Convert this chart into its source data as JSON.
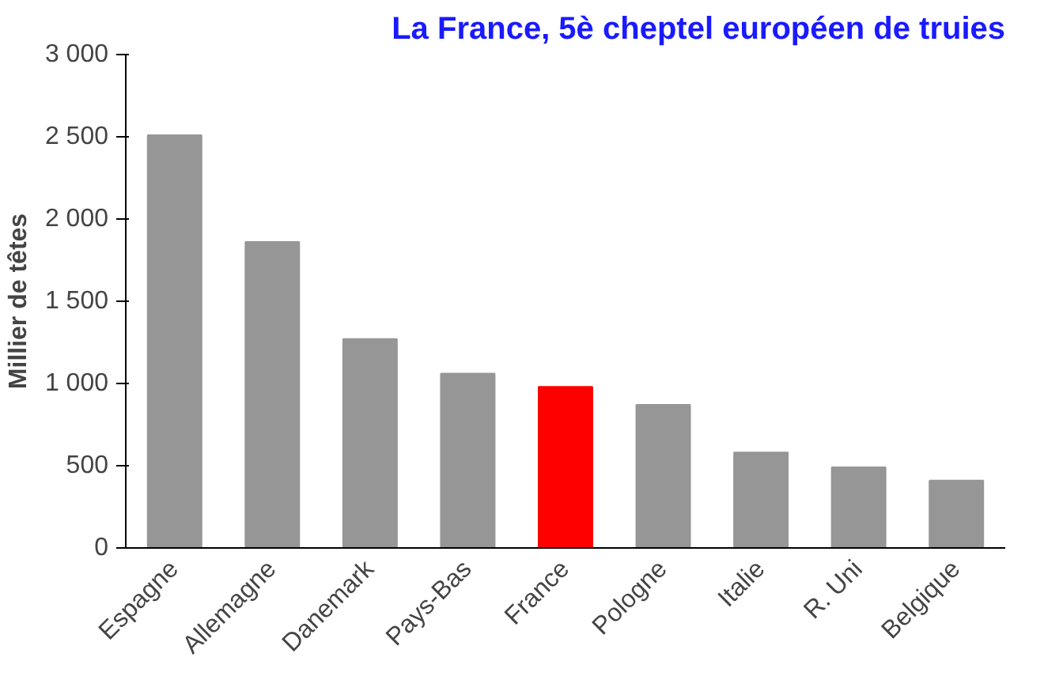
{
  "chart_data": {
    "type": "bar",
    "title": "La France, 5è cheptel européen de truies",
    "ylabel": "Millier de têtes",
    "categories": [
      "Espagne",
      "Allemagne",
      "Danemark",
      "Pays-Bas",
      "France",
      "Pologne",
      "Italie",
      "R. Uni",
      "Belgique"
    ],
    "values": [
      2510,
      1860,
      1270,
      1060,
      980,
      870,
      580,
      490,
      410
    ],
    "colors": [
      "#969696",
      "#969696",
      "#969696",
      "#969696",
      "#ff0000",
      "#969696",
      "#969696",
      "#969696",
      "#969696"
    ],
    "ylim": [
      0,
      3000
    ],
    "yticks": [
      {
        "value": 0,
        "label": "0"
      },
      {
        "value": 500,
        "label": "500"
      },
      {
        "value": 1000,
        "label": "1 000"
      },
      {
        "value": 1500,
        "label": "1 500"
      },
      {
        "value": 2000,
        "label": "2 000"
      },
      {
        "value": 2500,
        "label": "2 500"
      },
      {
        "value": 3000,
        "label": "3 000"
      }
    ],
    "grid": false
  }
}
